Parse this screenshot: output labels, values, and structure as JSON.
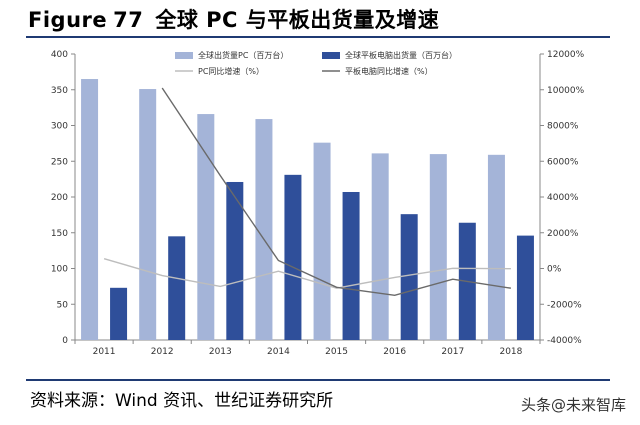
{
  "header": {
    "figure": "Figure",
    "number": "77",
    "text": "全球 PC 与平板出货量及增速"
  },
  "footer": {
    "source": "资料来源：Wind 资讯、世纪证券研究所",
    "watermark": "头条@未来智库"
  },
  "colors": {
    "pc_bar": "#a4b4d8",
    "tablet_bar": "#2f4f9a",
    "pc_line": "#bdbdbd",
    "tablet_line": "#6a6a6a",
    "rule": "#1f3a73"
  },
  "chart_data": {
    "type": "bar",
    "title": "",
    "categories": [
      "2011",
      "2012",
      "2013",
      "2014",
      "2015",
      "2016",
      "2017",
      "2018"
    ],
    "series": [
      {
        "name": "全球出货量PC（百万台）",
        "kind": "bar",
        "axis": "left",
        "values": [
          365,
          351,
          316,
          309,
          276,
          261,
          260,
          259
        ]
      },
      {
        "name": "全球平板电脑出货量（百万台）",
        "kind": "bar",
        "axis": "left",
        "values": [
          73,
          145,
          221,
          231,
          207,
          176,
          164,
          146
        ]
      },
      {
        "name": "PC同比增速（%）",
        "kind": "line",
        "axis": "right",
        "values": [
          550,
          -400,
          -1000,
          -150,
          -1100,
          -500,
          10,
          -10
        ]
      },
      {
        "name": "平板电脑同比增速（%）",
        "kind": "line",
        "axis": "right",
        "values": [
          null,
          10100,
          5200,
          450,
          -1050,
          -1500,
          -600,
          -1100
        ]
      }
    ],
    "left_axis": {
      "min": 0,
      "max": 400,
      "step": 50,
      "ticks": [
        "0",
        "50",
        "100",
        "150",
        "200",
        "250",
        "300",
        "350",
        "400"
      ]
    },
    "right_axis": {
      "min": -4000,
      "max": 12000,
      "step": 2000,
      "ticks": [
        "-4000%",
        "-2000%",
        "0%",
        "2000%",
        "4000%",
        "6000%",
        "8000%",
        "10000%",
        "12000%"
      ]
    },
    "grid": false,
    "legend": "top"
  }
}
